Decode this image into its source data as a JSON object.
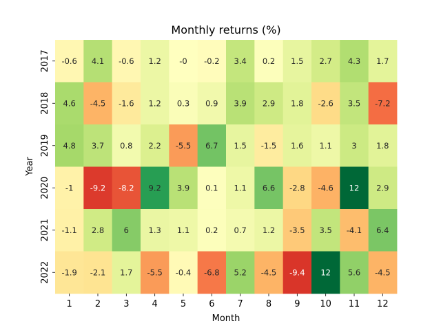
{
  "chart_data": {
    "type": "heatmap",
    "title": "Monthly returns (%)",
    "xlabel": "Month",
    "ylabel": "Year",
    "x_categories": [
      "1",
      "2",
      "3",
      "4",
      "5",
      "6",
      "7",
      "8",
      "9",
      "10",
      "11",
      "12"
    ],
    "y_categories": [
      "2017",
      "2018",
      "2019",
      "2020",
      "2021",
      "2022"
    ],
    "values": [
      [
        "-0.6",
        "4.1",
        "-0.6",
        "1.2",
        "-0",
        "-0.2",
        "3.4",
        "0.2",
        "1.5",
        "2.7",
        "4.3",
        "1.7"
      ],
      [
        "4.6",
        "-4.5",
        "-1.6",
        "1.2",
        "0.3",
        "0.9",
        "3.9",
        "2.9",
        "1.8",
        "-2.6",
        "3.5",
        "-7.2"
      ],
      [
        "4.8",
        "3.7",
        "0.8",
        "2.2",
        "-5.5",
        "6.7",
        "1.5",
        "-1.5",
        "1.6",
        "1.1",
        "3",
        "1.8"
      ],
      [
        "-1",
        "-9.2",
        "-8.2",
        "9.2",
        "3.9",
        "0.1",
        "1.1",
        "6.6",
        "-2.8",
        "-4.6",
        "12",
        "2.9"
      ],
      [
        "-1.1",
        "2.8",
        "6",
        "1.3",
        "1.1",
        "0.2",
        "0.7",
        "1.2",
        "-3.5",
        "3.5",
        "-4.1",
        "6.4"
      ],
      [
        "-1.9",
        "-2.1",
        "1.7",
        "-5.5",
        "-0.4",
        "-6.8",
        "5.2",
        "-4.5",
        "-9.4",
        "12",
        "5.6",
        "-4.5"
      ]
    ],
    "colormap": "RdYlGn",
    "color_range": [
      -12,
      12
    ],
    "colorbar": false,
    "grid": false
  }
}
